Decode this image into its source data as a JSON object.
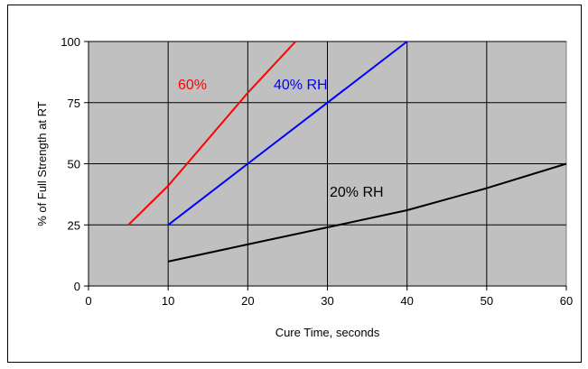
{
  "chart_data": {
    "type": "line",
    "title": "",
    "xlabel": "Cure Time, seconds",
    "ylabel": "% of Full Strength at RT",
    "xlim": [
      0,
      60
    ],
    "ylim": [
      0,
      100
    ],
    "xticks": [
      "0",
      "10",
      "20",
      "30",
      "40",
      "50",
      "60"
    ],
    "yticks": [
      "0",
      "25",
      "50",
      "75",
      "100"
    ],
    "grid": true,
    "plot_background": "#c0c0c0",
    "series": [
      {
        "name": "60%",
        "color": "#ff0000",
        "points": [
          [
            5,
            25
          ],
          [
            10,
            41
          ],
          [
            15,
            60
          ],
          [
            20,
            79
          ],
          [
            26,
            100
          ]
        ]
      },
      {
        "name": "40% RH",
        "color": "#0000ff",
        "points": [
          [
            10,
            25
          ],
          [
            20,
            50
          ],
          [
            30,
            75
          ],
          [
            40,
            100
          ]
        ]
      },
      {
        "name": "20% RH",
        "color": "#000000",
        "points": [
          [
            10,
            10
          ],
          [
            20,
            17
          ],
          [
            30,
            24
          ],
          [
            40,
            31
          ],
          [
            50,
            40
          ],
          [
            60,
            50
          ]
        ]
      }
    ]
  }
}
